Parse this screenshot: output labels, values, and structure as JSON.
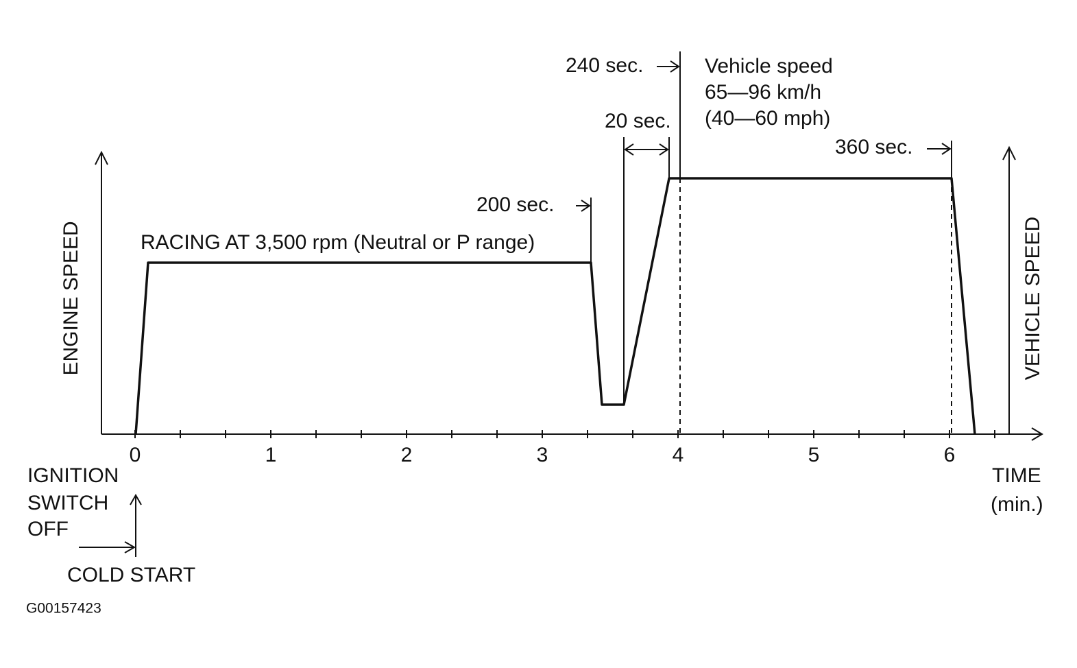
{
  "axes": {
    "y_left_label": "ENGINE SPEED",
    "y_right_label": "VEHICLE SPEED",
    "x_title": "TIME",
    "x_unit": "(min.)",
    "x_labels": [
      "0",
      "1",
      "2",
      "3",
      "4",
      "5",
      "6"
    ]
  },
  "annotations": {
    "racing": "RACING AT 3,500 rpm (Neutral or P range)",
    "t200": "200 sec.",
    "t20": "20 sec.",
    "t240": "240 sec.",
    "t360": "360 sec.",
    "vehicle_speed": [
      "Vehicle speed",
      "65—96 km/h",
      "(40—60 mph)"
    ],
    "ignition": [
      "IGNITION",
      "SWITCH",
      "OFF"
    ],
    "cold_start": "COLD START"
  },
  "figure_id": "G00157423"
}
